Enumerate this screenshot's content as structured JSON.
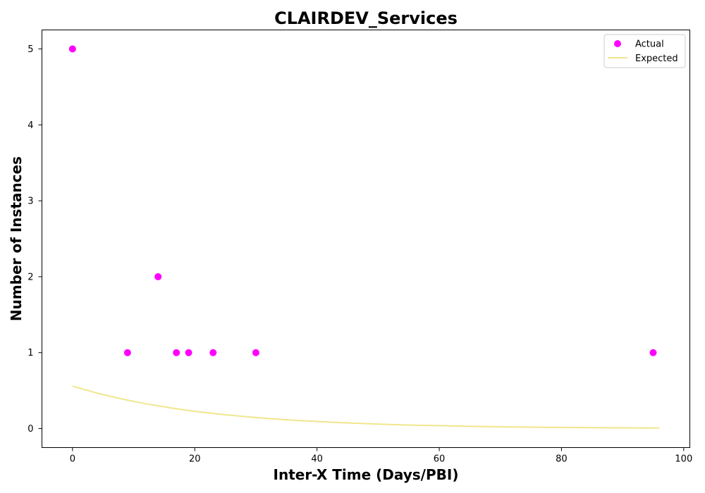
{
  "chart_data": {
    "type": "scatter",
    "title": "CLAIRDEV_Services",
    "xlabel": "Inter-X Time (Days/PBI)",
    "ylabel": "Number of Instances",
    "xlim": [
      -5,
      101
    ],
    "ylim": [
      -0.25,
      5.25
    ],
    "xticks": [
      0,
      20,
      40,
      60,
      80,
      100
    ],
    "yticks": [
      0,
      1,
      2,
      3,
      4,
      5
    ],
    "grid": false,
    "legend_position": "top-right",
    "series": [
      {
        "name": "Actual",
        "kind": "scatter",
        "color": "#ff00ff",
        "x": [
          0,
          9,
          14,
          17,
          19,
          23,
          30,
          95
        ],
        "y": [
          5,
          1,
          2,
          1,
          1,
          1,
          1,
          1
        ]
      },
      {
        "name": "Expected",
        "kind": "line",
        "color": "#f0e68c",
        "x": [
          0,
          4,
          8,
          12,
          16,
          20,
          24,
          28,
          32,
          36,
          40,
          44,
          48,
          52,
          56,
          60,
          64,
          68,
          72,
          76,
          80,
          84,
          88,
          92,
          96
        ],
        "y": [
          0.56,
          0.468,
          0.391,
          0.327,
          0.273,
          0.228,
          0.191,
          0.159,
          0.133,
          0.111,
          0.093,
          0.078,
          0.065,
          0.054,
          0.045,
          0.038,
          0.032,
          0.026,
          0.022,
          0.018,
          0.015,
          0.013,
          0.011,
          0.009,
          0.008
        ]
      }
    ]
  }
}
